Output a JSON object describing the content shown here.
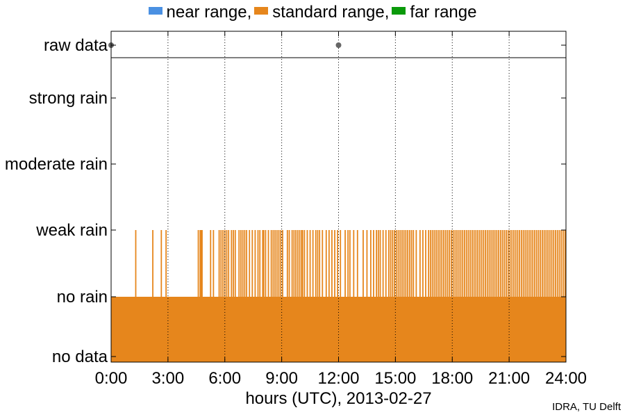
{
  "chart_data": {
    "type": "bar",
    "title": "",
    "xlabel": "hours (UTC), 2013-02-27",
    "x_ticks": [
      "0:00",
      "3:00",
      "6:00",
      "9:00",
      "12:00",
      "15:00",
      "18:00",
      "21:00",
      "24:00"
    ],
    "xlim": [
      0,
      24
    ],
    "y_categories": [
      "no data",
      "no rain",
      "weak rain",
      "moderate rain",
      "strong rain",
      "raw data"
    ],
    "legend": {
      "placement": "top-center",
      "entries": [
        {
          "name": "near range,",
          "color": "#4a90e2"
        },
        {
          "name": "standard range,",
          "color": "#e6861c"
        },
        {
          "name": "far range",
          "color": "#0a9a0a"
        }
      ]
    },
    "grid": "vertical dotted at each x tick",
    "series": [
      {
        "name": "standard range,",
        "color": "#e6861c",
        "baseline_level": "no rain",
        "baseline_range": [
          0,
          24
        ],
        "weak_rain_times_hours": [
          1.3,
          2.2,
          2.65,
          2.9,
          4.6,
          4.7,
          4.75,
          4.8,
          5.25,
          5.4,
          5.7,
          5.8,
          5.9,
          6.0,
          6.1,
          6.2,
          6.35,
          6.45,
          6.55,
          6.75,
          6.85,
          6.95,
          7.05,
          7.15,
          7.3,
          7.45,
          7.6,
          7.75,
          7.85,
          8.0,
          8.05,
          8.15,
          8.3,
          8.45,
          8.55,
          8.65,
          8.75,
          8.85,
          8.95,
          9.05,
          9.3,
          9.4,
          9.55,
          9.65,
          9.75,
          9.85,
          9.95,
          10.05,
          10.1,
          10.2,
          10.35,
          10.5,
          10.65,
          10.8,
          10.9,
          11.0,
          11.15,
          11.35,
          11.5,
          11.65,
          11.8,
          11.95,
          12.1,
          12.35,
          12.5,
          12.6,
          12.8,
          13.0,
          13.3,
          13.5,
          13.7,
          13.85,
          14.0,
          14.1,
          14.2,
          14.35,
          14.5,
          14.65,
          14.75,
          14.85,
          14.95,
          15.05,
          15.15,
          15.25,
          15.35,
          15.45,
          15.55,
          15.65,
          15.75,
          15.85,
          15.95,
          16.1,
          16.3,
          16.45,
          16.6,
          16.75,
          16.85,
          16.95,
          17.05,
          17.15,
          17.25,
          17.35,
          17.45,
          17.55,
          17.65,
          17.75,
          17.85,
          17.95,
          18.05,
          18.15,
          18.25,
          18.35,
          18.45,
          18.55,
          18.65,
          18.75,
          18.85,
          18.95,
          19.05,
          19.15,
          19.25,
          19.35,
          19.45,
          19.55,
          19.65,
          19.75,
          19.85,
          19.95,
          20.05,
          20.15,
          20.25,
          20.35,
          20.45,
          20.55,
          20.65,
          20.75,
          20.85,
          20.95,
          21.05,
          21.15,
          21.25,
          21.35,
          21.45,
          21.55,
          21.65,
          21.75,
          21.85,
          21.95,
          22.05,
          22.15,
          22.25,
          22.35,
          22.45,
          22.55,
          22.65,
          22.75,
          22.85,
          22.95,
          23.05,
          23.15,
          23.25,
          23.35,
          23.45,
          23.55,
          23.65,
          23.75,
          23.85,
          23.95
        ]
      }
    ],
    "raw_data_points_hours": [
      0,
      12
    ],
    "raw_data_point_color": "#666666"
  },
  "credit": "IDRA, TU Delft"
}
